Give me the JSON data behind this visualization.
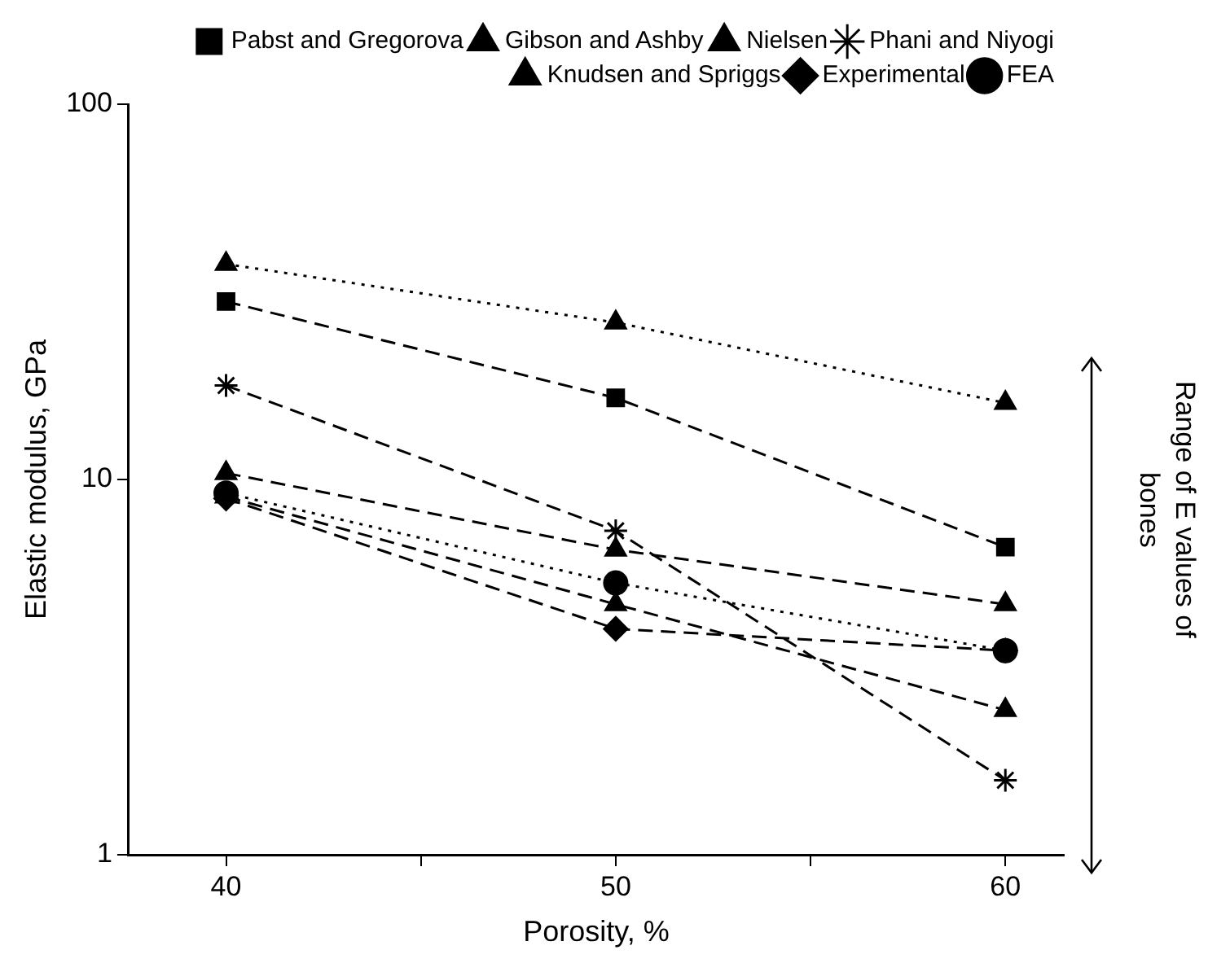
{
  "chart_data": {
    "type": "line",
    "xlabel": "Porosity, %",
    "ylabel": "Elastic modulus, GPa",
    "x": [
      40,
      50,
      60
    ],
    "xlim": [
      37.5,
      61.5
    ],
    "xticks": [
      40,
      {
        "value": 45,
        "label": null
      },
      50,
      {
        "value": 55,
        "label": null
      },
      60
    ],
    "ylim": [
      1,
      100
    ],
    "yticks": [
      1,
      10,
      100
    ],
    "log": true,
    "grid": false,
    "legend": "top right",
    "annotations": [
      "Range of E values of bones"
    ],
    "series": [
      {
        "name": "Pabst and Gregorova",
        "color": "#000000",
        "marker": "square",
        "line_style": "dashed",
        "values": [
          29.8,
          16.5,
          6.6
        ]
      },
      {
        "name": "Gibson and Ashby",
        "color": "#000000",
        "marker": "triangle",
        "line_style": "dashed",
        "values": [
          10.4,
          6.5,
          4.65
        ]
      },
      {
        "name": "Nielsen",
        "color": "#000000",
        "marker": "triangle",
        "line_style": "dotted",
        "values": [
          37.5,
          26.2,
          16
        ]
      },
      {
        "name": "Phani and Niyogi",
        "color": "#000000",
        "marker": "cross",
        "line_style": "dashed",
        "values": [
          17.8,
          7.3,
          1.58
        ]
      },
      {
        "name": "Knudsen and Spriggs",
        "color": "#000000",
        "marker": "triangle",
        "line_style": "dashed",
        "values": [
          9,
          4.65,
          2.43
        ]
      },
      {
        "name": "Experimental",
        "color": "#000000",
        "marker": "diamond",
        "line_style": "dashed",
        "values": [
          8.9,
          4,
          3.5
        ]
      },
      {
        "name": "FEA",
        "color": "#000000",
        "marker": "circle",
        "line_style": "dotted",
        "values": [
          9.2,
          5.3,
          3.5
        ]
      }
    ]
  }
}
